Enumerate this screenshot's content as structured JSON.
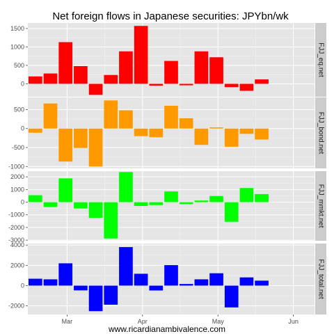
{
  "chart_data": {
    "type": "bar",
    "title": "Net foreign flows in Japanese securities: JPYbn/wk",
    "xlabel": "",
    "x_tick_labels": [
      "Mar",
      "Apr",
      "May",
      "Jun"
    ],
    "x_tick_positions": [
      2.1,
      7.1,
      12.1,
      17.1
    ],
    "n_weeks": 19,
    "grid": true,
    "panels": [
      {
        "name": "FJJ_eq.net",
        "color": "#ff0000",
        "ylim": [
          -350,
          1650
        ],
        "yticks": [
          0,
          500,
          1000,
          1500
        ],
        "values": [
          200,
          280,
          1130,
          480,
          -300,
          240,
          880,
          1570,
          -50,
          620,
          -40,
          880,
          720,
          -90,
          -190,
          120,
          null,
          null,
          null
        ]
      },
      {
        "name": "FJJ_bond.net",
        "color": "#ff9900",
        "ylim": [
          -1050,
          820
        ],
        "yticks": [
          -1000,
          -500,
          0,
          500
        ],
        "values": [
          -110,
          660,
          -870,
          -510,
          -1000,
          740,
          480,
          -200,
          -230,
          600,
          270,
          -430,
          30,
          -480,
          -140,
          -290,
          null,
          null,
          null
        ]
      },
      {
        "name": "FJJ_mmkt.net",
        "color": "#00ff00",
        "ylim": [
          -3050,
          2450
        ],
        "yticks": [
          -3000,
          -2000,
          -1000,
          0,
          1000,
          2000
        ],
        "values": [
          550,
          -380,
          1880,
          -500,
          -1240,
          -2870,
          2380,
          -300,
          -230,
          850,
          -150,
          130,
          490,
          -1550,
          1120,
          640,
          null,
          null,
          null
        ]
      },
      {
        "name": "FJJ_total.net",
        "color": "#0000ff",
        "ylim": [
          -2850,
          4150
        ],
        "yticks": [
          -2000,
          0,
          2000,
          4000
        ],
        "values": [
          680,
          620,
          2200,
          -470,
          -2520,
          -1880,
          3800,
          1170,
          -480,
          2020,
          160,
          620,
          1220,
          -2150,
          810,
          490,
          null,
          null,
          null
        ]
      }
    ]
  },
  "footer_text": "www.ricardianambivalence.com"
}
